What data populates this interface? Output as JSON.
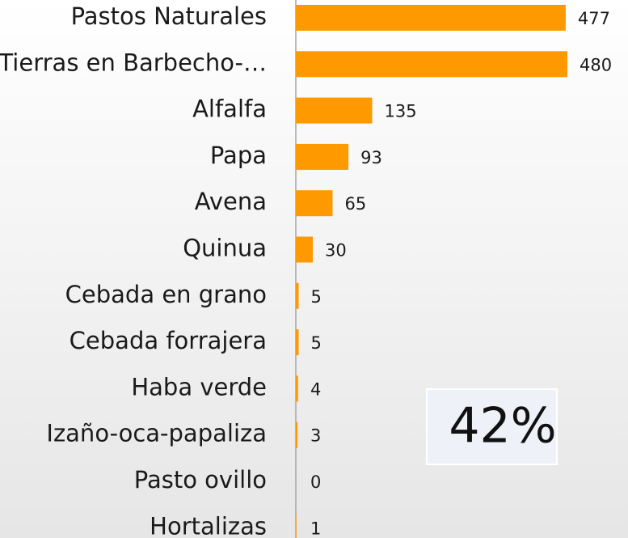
{
  "chart_data": {
    "type": "bar",
    "orientation": "horizontal",
    "categories": [
      "Pastos Naturales",
      "Tierras en Barbecho-…",
      "Alfalfa",
      "Papa",
      "Avena",
      "Quinua",
      "Cebada en grano",
      "Cebada forrajera",
      "Haba verde",
      "Izaño-oca-papaliza",
      "Pasto ovillo",
      "Hortalizas"
    ],
    "values": [
      477,
      480,
      135,
      93,
      65,
      30,
      5,
      5,
      4,
      3,
      0,
      1
    ],
    "color": "#ff9900",
    "annotation": "42%"
  }
}
